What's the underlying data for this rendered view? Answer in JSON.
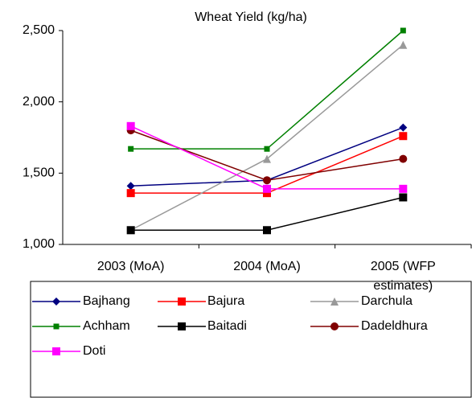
{
  "chart_data": {
    "type": "line",
    "title": "Wheat Yield (kg/ha)",
    "categories": [
      "2003 (MoA)",
      "2004 (MoA)",
      "2005 (WFP estimates)"
    ],
    "ylim": [
      1000,
      2500
    ],
    "yticks": [
      {
        "value": 1000,
        "label": "1,000"
      },
      {
        "value": 1500,
        "label": "1,500"
      },
      {
        "value": 2000,
        "label": "2,000"
      },
      {
        "value": 2500,
        "label": "2,500"
      }
    ],
    "grid": false,
    "series": [
      {
        "name": "Bajhang",
        "color": "#000080",
        "marker": "diamond",
        "values": [
          1410,
          1450,
          1820
        ]
      },
      {
        "name": "Bajura",
        "color": "#ff0000",
        "marker": "square",
        "values": [
          1360,
          1360,
          1760
        ]
      },
      {
        "name": "Darchula",
        "color": "#999999",
        "marker": "triangle",
        "values": [
          1100,
          1600,
          2400
        ]
      },
      {
        "name": "Achham",
        "color": "#008000",
        "marker": "small-square",
        "values": [
          1670,
          1670,
          2500
        ]
      },
      {
        "name": "Baitadi",
        "color": "#000000",
        "marker": "square",
        "values": [
          1100,
          1100,
          1330
        ]
      },
      {
        "name": "Dadeldhura",
        "color": "#800000",
        "marker": "circle",
        "values": [
          1800,
          1450,
          1600
        ]
      },
      {
        "name": "Doti",
        "color": "#ff00ff",
        "marker": "square",
        "values": [
          1830,
          1390,
          1390
        ]
      }
    ]
  }
}
